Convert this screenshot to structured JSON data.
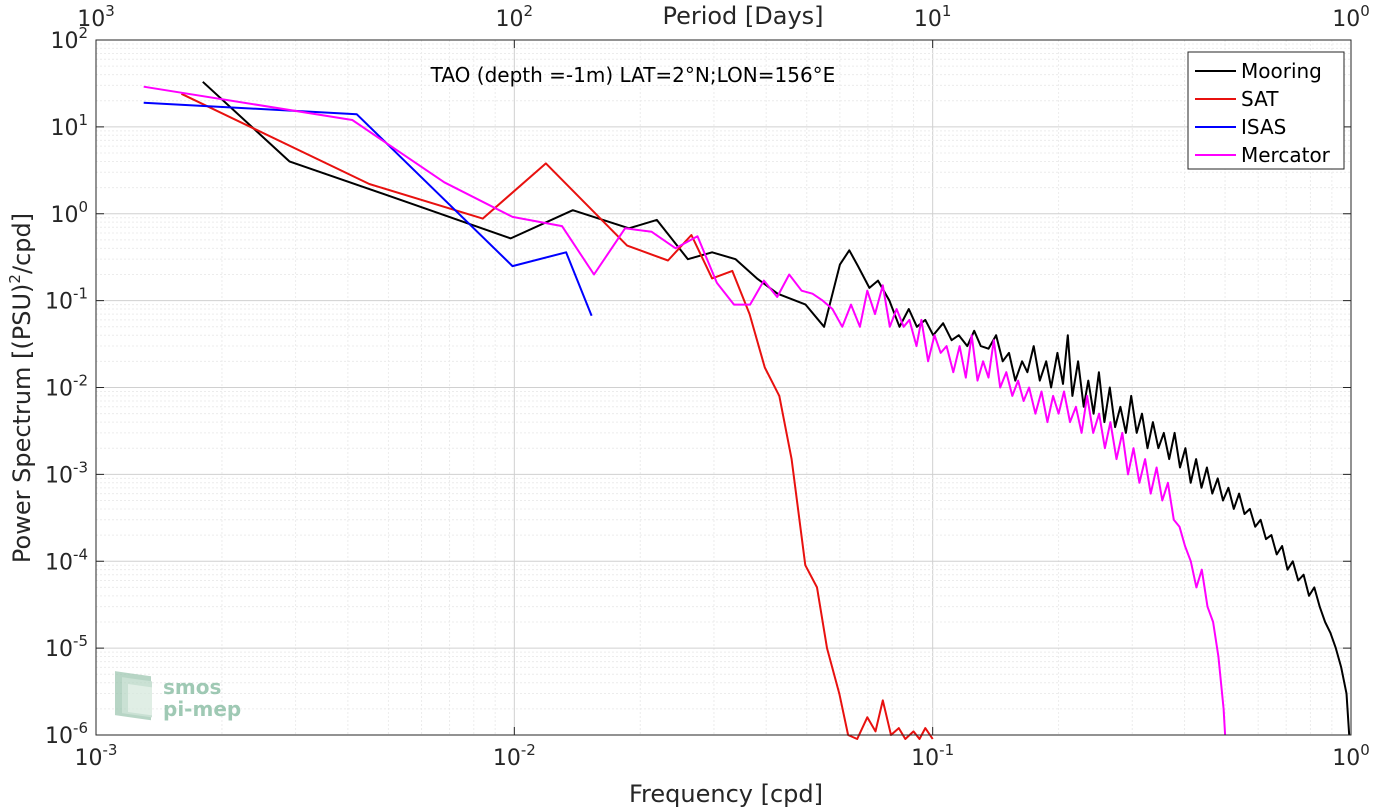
{
  "chart_data": {
    "type": "line",
    "title": "TAO (depth =-1m) LAT=2°N;LON=156°E",
    "xlabel": "Frequency [cpd]",
    "ylabel_prefix": "Power Spectrum [(PSU)",
    "ylabel_sup": "2",
    "ylabel_suffix": "/cpd]",
    "x2label": "Period [Days]",
    "xscale": "log",
    "yscale": "log",
    "xlim": [
      0.001,
      1
    ],
    "ylim": [
      1e-06,
      100
    ],
    "grid": true,
    "legend_position": "top-right",
    "x_ticks": [
      {
        "value": 0.001,
        "base": "10",
        "exp": "-3"
      },
      {
        "value": 0.01,
        "base": "10",
        "exp": "-2"
      },
      {
        "value": 0.1,
        "base": "10",
        "exp": "-1"
      },
      {
        "value": 1,
        "base": "10",
        "exp": "0"
      }
    ],
    "x2_ticks": [
      {
        "value": 0.001,
        "base": "10",
        "exp": "3"
      },
      {
        "value": 0.01,
        "base": "10",
        "exp": "2"
      },
      {
        "value": 0.1,
        "base": "10",
        "exp": "1"
      },
      {
        "value": 1,
        "base": "10",
        "exp": "0"
      }
    ],
    "y_ticks": [
      {
        "value": 100,
        "base": "10",
        "exp": "2"
      },
      {
        "value": 10,
        "base": "10",
        "exp": "1"
      },
      {
        "value": 1,
        "base": "10",
        "exp": "0"
      },
      {
        "value": 0.1,
        "base": "10",
        "exp": "-1"
      },
      {
        "value": 0.01,
        "base": "10",
        "exp": "-2"
      },
      {
        "value": 0.001,
        "base": "10",
        "exp": "-3"
      },
      {
        "value": 0.0001,
        "base": "10",
        "exp": "-4"
      },
      {
        "value": 1e-05,
        "base": "10",
        "exp": "-5"
      },
      {
        "value": 1e-06,
        "base": "10",
        "exp": "-6"
      }
    ],
    "series": [
      {
        "name": "Mooring",
        "color": "#000000",
        "x": [
          0.0018,
          0.0029,
          0.0057,
          0.0098,
          0.0138,
          0.0188,
          0.0219,
          0.026,
          0.0297,
          0.0338,
          0.038,
          0.0426,
          0.0497,
          0.055,
          0.06,
          0.0632,
          0.0663,
          0.0706,
          0.074,
          0.0788,
          0.0833,
          0.0877,
          0.0917,
          0.096,
          0.1003,
          0.1059,
          0.111,
          0.1155,
          0.121,
          0.1257,
          0.1303,
          0.136,
          0.1418,
          0.147,
          0.1522,
          0.1576,
          0.1636,
          0.1684,
          0.1744,
          0.1803,
          0.1868,
          0.1919,
          0.1987,
          0.2049,
          0.2104,
          0.2158,
          0.2227,
          0.2296,
          0.2355,
          0.2425,
          0.2497,
          0.2573,
          0.2651,
          0.273,
          0.2811,
          0.2896,
          0.2983,
          0.3074,
          0.3166,
          0.3263,
          0.3361,
          0.3464,
          0.3568,
          0.3676,
          0.3788,
          0.3902,
          0.402,
          0.4139,
          0.4264,
          0.4392,
          0.4524,
          0.466,
          0.48,
          0.4944,
          0.5093,
          0.5245,
          0.5402,
          0.5564,
          0.5731,
          0.5903,
          0.608,
          0.6262,
          0.6451,
          0.6644,
          0.6843,
          0.7049,
          0.726,
          0.7479,
          0.7702,
          0.7934,
          0.8171,
          0.8418,
          0.867,
          0.8929,
          0.9198,
          0.9474,
          0.9757,
          0.99
        ],
        "y": [
          33,
          4.0,
          1.3,
          0.52,
          1.1,
          0.68,
          0.85,
          0.3,
          0.36,
          0.3,
          0.18,
          0.12,
          0.09,
          0.05,
          0.26,
          0.38,
          0.25,
          0.14,
          0.17,
          0.1,
          0.05,
          0.08,
          0.05,
          0.06,
          0.04,
          0.055,
          0.035,
          0.04,
          0.03,
          0.045,
          0.03,
          0.028,
          0.04,
          0.02,
          0.025,
          0.012,
          0.02,
          0.015,
          0.03,
          0.012,
          0.02,
          0.01,
          0.025,
          0.011,
          0.04,
          0.008,
          0.02,
          0.006,
          0.012,
          0.005,
          0.015,
          0.004,
          0.01,
          0.0035,
          0.006,
          0.003,
          0.008,
          0.003,
          0.005,
          0.002,
          0.004,
          0.002,
          0.003,
          0.0015,
          0.003,
          0.0012,
          0.002,
          0.0008,
          0.0015,
          0.0007,
          0.0012,
          0.0006,
          0.0009,
          0.0005,
          0.0007,
          0.0004,
          0.0006,
          0.00035,
          0.0004,
          0.00025,
          0.0003,
          0.00018,
          0.0002,
          0.00012,
          0.00015,
          8e-05,
          0.0001,
          6e-05,
          7e-05,
          4e-05,
          5e-05,
          3e-05,
          2e-05,
          1.5e-05,
          1e-05,
          6e-06,
          3e-06,
          1e-06
        ]
      },
      {
        "name": "SAT",
        "color": "#e8110f",
        "x": [
          0.0016,
          0.0045,
          0.0084,
          0.0119,
          0.0186,
          0.0233,
          0.0265,
          0.0297,
          0.0332,
          0.0365,
          0.0397,
          0.043,
          0.046,
          0.0496,
          0.0529,
          0.0559,
          0.0598,
          0.0628,
          0.066,
          0.0698,
          0.073,
          0.076,
          0.0795,
          0.083,
          0.086,
          0.09,
          0.093,
          0.096,
          0.1
        ],
        "y": [
          24,
          2.2,
          0.88,
          3.8,
          0.43,
          0.29,
          0.57,
          0.18,
          0.22,
          0.07,
          0.017,
          0.008,
          0.0015,
          9e-05,
          5e-05,
          1e-05,
          3e-06,
          1e-06,
          9e-07,
          1.6e-06,
          1.1e-06,
          2.5e-06,
          1e-06,
          1.2e-06,
          9e-07,
          1.1e-06,
          9e-07,
          1.2e-06,
          9e-07
        ]
      },
      {
        "name": "ISAS",
        "color": "#0000ff",
        "x": [
          0.0013,
          0.0042,
          0.0099,
          0.0133,
          0.0153
        ],
        "y": [
          19,
          14,
          0.25,
          0.36,
          0.067
        ]
      },
      {
        "name": "Mercator",
        "color": "#ff00ff",
        "x": [
          0.0013,
          0.0041,
          0.0068,
          0.0099,
          0.013,
          0.0155,
          0.0184,
          0.0213,
          0.0243,
          0.0274,
          0.0305,
          0.0335,
          0.0366,
          0.0395,
          0.0425,
          0.0454,
          0.0486,
          0.0516,
          0.0546,
          0.0576,
          0.0608,
          0.0638,
          0.067,
          0.0698,
          0.0728,
          0.076,
          0.079,
          0.082,
          0.0852,
          0.088,
          0.0915,
          0.094,
          0.0975,
          0.101,
          0.1045,
          0.108,
          0.112,
          0.116,
          0.12,
          0.124,
          0.128,
          0.132,
          0.136,
          0.14,
          0.145,
          0.15,
          0.155,
          0.16,
          0.165,
          0.17,
          0.176,
          0.182,
          0.188,
          0.194,
          0.2,
          0.206,
          0.213,
          0.22,
          0.227,
          0.234,
          0.242,
          0.25,
          0.258,
          0.266,
          0.275,
          0.284,
          0.293,
          0.302,
          0.312,
          0.322,
          0.332,
          0.343,
          0.354,
          0.365,
          0.377,
          0.389,
          0.401,
          0.414,
          0.427,
          0.44,
          0.454,
          0.468,
          0.482,
          0.496,
          0.5
        ],
        "y": [
          29,
          12,
          2.3,
          0.92,
          0.72,
          0.2,
          0.68,
          0.62,
          0.4,
          0.55,
          0.16,
          0.09,
          0.09,
          0.17,
          0.11,
          0.2,
          0.13,
          0.12,
          0.1,
          0.08,
          0.05,
          0.09,
          0.05,
          0.13,
          0.07,
          0.15,
          0.05,
          0.08,
          0.05,
          0.06,
          0.03,
          0.06,
          0.02,
          0.04,
          0.025,
          0.03,
          0.015,
          0.03,
          0.013,
          0.04,
          0.012,
          0.02,
          0.013,
          0.035,
          0.01,
          0.015,
          0.008,
          0.012,
          0.007,
          0.01,
          0.005,
          0.009,
          0.004,
          0.008,
          0.005,
          0.009,
          0.004,
          0.006,
          0.003,
          0.008,
          0.003,
          0.005,
          0.002,
          0.004,
          0.0015,
          0.003,
          0.001,
          0.002,
          0.0008,
          0.0015,
          0.0006,
          0.0012,
          0.0005,
          0.0008,
          0.0003,
          0.00025,
          0.00015,
          0.0001,
          5e-05,
          8e-05,
          3e-05,
          2e-05,
          8e-06,
          2e-06,
          1e-06
        ]
      }
    ]
  },
  "watermark": {
    "line1": "smos",
    "line2": "pi-mep"
  }
}
